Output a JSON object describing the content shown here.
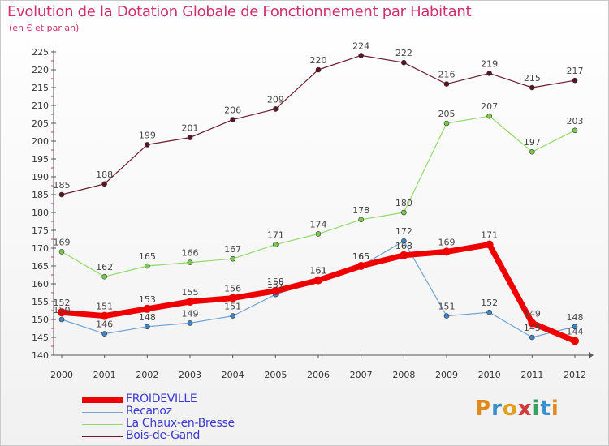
{
  "header": {
    "title": "Evolution de la Dotation Globale de Fonctionnement par Habitant",
    "subtitle": "(en € et par an)"
  },
  "brand": {
    "letters": [
      {
        "ch": "P",
        "color": "#e08a1e"
      },
      {
        "ch": "r",
        "color": "#3a8fd0"
      },
      {
        "ch": "o",
        "color": "#e0a020"
      },
      {
        "ch": "x",
        "color": "#d03a3a"
      },
      {
        "ch": "i",
        "color": "#3aa060"
      },
      {
        "ch": "t",
        "color": "#3a8fd0"
      },
      {
        "ch": "i",
        "color": "#e08a1e"
      }
    ]
  },
  "chart_data": {
    "type": "line",
    "title": "Evolution de la Dotation Globale de Fonctionnement par Habitant",
    "subtitle": "(en € et par an)",
    "xlabel": "",
    "ylabel": "",
    "x": [
      "2000",
      "2001",
      "2002",
      "2003",
      "2004",
      "2005",
      "2006",
      "2007",
      "2008",
      "2009",
      "2010",
      "2011",
      "2012"
    ],
    "ylim": [
      140,
      225
    ],
    "yticks": [
      "140",
      "145",
      "150",
      "155",
      "160",
      "165",
      "170",
      "175",
      "180",
      "185",
      "190",
      "195",
      "200",
      "205",
      "210",
      "215",
      "220",
      "225"
    ],
    "grid": false,
    "legend_position": "bottom-left",
    "series": [
      {
        "name": "Bois-de-Gand",
        "color": "#6b1c2c",
        "dot": "#5a1525",
        "width": 1.2,
        "values": [
          185,
          188,
          199,
          201,
          206,
          209,
          220,
          224,
          222,
          216,
          219,
          215,
          217
        ]
      },
      {
        "name": "La Chaux-en-Bresse",
        "color": "#92d96b",
        "dot": "#7cc94f",
        "width": 1.2,
        "values": [
          169,
          162,
          165,
          166,
          167,
          171,
          174,
          178,
          180,
          205,
          207,
          197,
          203
        ]
      },
      {
        "name": "Recanoz",
        "color": "#6fa3d6",
        "dot": "#3f86c9",
        "width": 1.2,
        "values": [
          150,
          146,
          148,
          149,
          151,
          157,
          161,
          165,
          172,
          151,
          152,
          145,
          148
        ]
      },
      {
        "name": "FROIDEVILLE",
        "color": "#ee0000",
        "dot": "#ee0000",
        "width": 7,
        "values": [
          152,
          151,
          153,
          155,
          156,
          158,
          161,
          165,
          168,
          169,
          171,
          149,
          144
        ]
      }
    ],
    "legend": [
      "FROIDEVILLE",
      "Recanoz",
      "La Chaux-en-Bresse",
      "Bois-de-Gand"
    ]
  }
}
